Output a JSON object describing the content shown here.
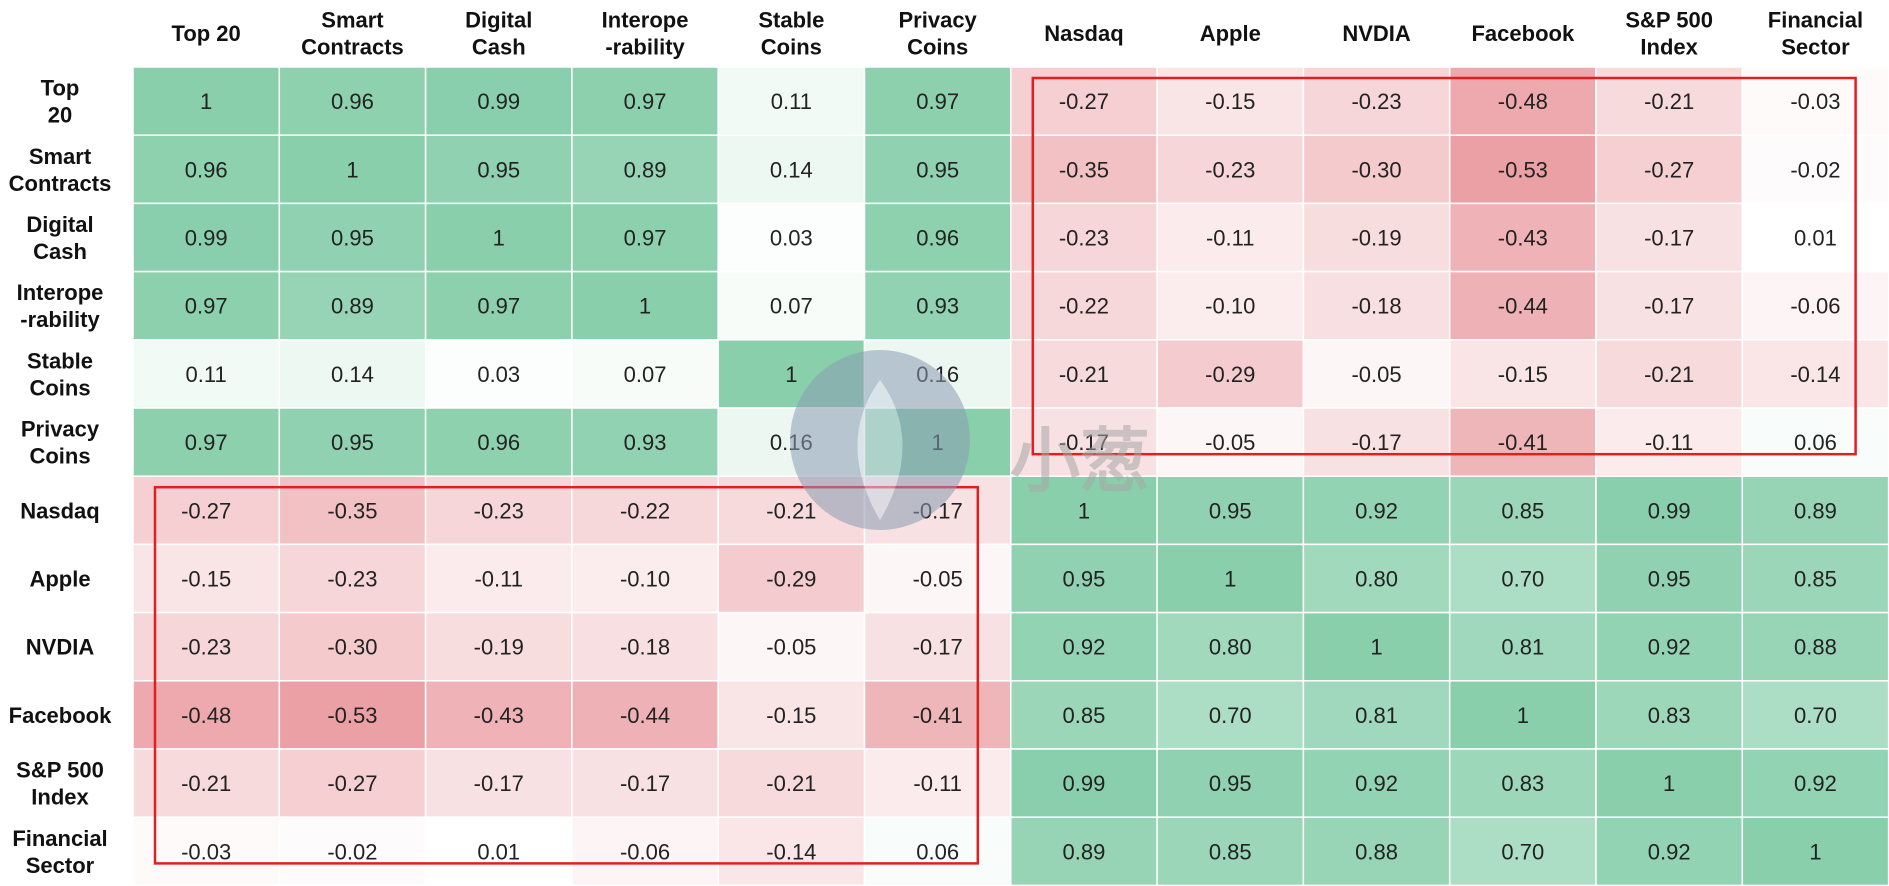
{
  "chart_data": {
    "type": "heatmap",
    "title": "",
    "columns": [
      [
        "Top 20"
      ],
      [
        "Smart",
        "Contracts"
      ],
      [
        "Digital",
        "Cash"
      ],
      [
        "Interope",
        "-rability"
      ],
      [
        "Stable",
        "Coins"
      ],
      [
        "Privacy",
        "Coins"
      ],
      [
        "Nasdaq"
      ],
      [
        "Apple"
      ],
      [
        "NVDIA"
      ],
      [
        "Facebook"
      ],
      [
        "S&P 500",
        "Index"
      ],
      [
        "Financial",
        "Sector"
      ]
    ],
    "rows": [
      [
        "Top",
        "20"
      ],
      [
        "Smart",
        "Contracts"
      ],
      [
        "Digital",
        "Cash"
      ],
      [
        "Interope",
        "-rability"
      ],
      [
        "Stable",
        "Coins"
      ],
      [
        "Privacy",
        "Coins"
      ],
      [
        "Nasdaq"
      ],
      [
        "Apple"
      ],
      [
        "NVDIA"
      ],
      [
        "Facebook"
      ],
      [
        "S&P 500",
        "Index"
      ],
      [
        "Financial",
        "Sector"
      ]
    ],
    "values": [
      [
        "1",
        "0.96",
        "0.99",
        "0.97",
        "0.11",
        "0.97",
        "-0.27",
        "-0.15",
        "-0.23",
        "-0.48",
        "-0.21",
        "-0.03"
      ],
      [
        "0.96",
        "1",
        "0.95",
        "0.89",
        "0.14",
        "0.95",
        "-0.35",
        "-0.23",
        "-0.30",
        "-0.53",
        "-0.27",
        "-0.02"
      ],
      [
        "0.99",
        "0.95",
        "1",
        "0.97",
        "0.03",
        "0.96",
        "-0.23",
        "-0.11",
        "-0.19",
        "-0.43",
        "-0.17",
        "0.01"
      ],
      [
        "0.97",
        "0.89",
        "0.97",
        "1",
        "0.07",
        "0.93",
        "-0.22",
        "-0.10",
        "-0.18",
        "-0.44",
        "-0.17",
        "-0.06"
      ],
      [
        "0.11",
        "0.14",
        "0.03",
        "0.07",
        "1",
        "0.16",
        "-0.21",
        "-0.29",
        "-0.05",
        "-0.15",
        "-0.21",
        "-0.14"
      ],
      [
        "0.97",
        "0.95",
        "0.96",
        "0.93",
        "0.16",
        "1",
        "-0.17",
        "-0.05",
        "-0.17",
        "-0.41",
        "-0.11",
        "0.06"
      ],
      [
        "-0.27",
        "-0.35",
        "-0.23",
        "-0.22",
        "-0.21",
        "-0.17",
        "1",
        "0.95",
        "0.92",
        "0.85",
        "0.99",
        "0.89"
      ],
      [
        "-0.15",
        "-0.23",
        "-0.11",
        "-0.10",
        "-0.29",
        "-0.05",
        "0.95",
        "1",
        "0.80",
        "0.70",
        "0.95",
        "0.85"
      ],
      [
        "-0.23",
        "-0.30",
        "-0.19",
        "-0.18",
        "-0.05",
        "-0.17",
        "0.92",
        "0.80",
        "1",
        "0.81",
        "0.92",
        "0.88"
      ],
      [
        "-0.48",
        "-0.53",
        "-0.43",
        "-0.44",
        "-0.15",
        "-0.41",
        "0.85",
        "0.70",
        "0.81",
        "1",
        "0.83",
        "0.70"
      ],
      [
        "-0.21",
        "-0.27",
        "-0.17",
        "-0.17",
        "-0.21",
        "-0.11",
        "0.99",
        "0.95",
        "0.92",
        "0.83",
        "1",
        "0.92"
      ],
      [
        "-0.03",
        "-0.02",
        "0.01",
        "-0.06",
        "-0.14",
        "0.06",
        "0.89",
        "0.85",
        "0.88",
        "0.70",
        "0.92",
        "1"
      ]
    ],
    "color_scale": {
      "positive_max": "#89cfac",
      "neutral": "#ffffff",
      "negative_max": "#e8949a",
      "range": [
        -0.6,
        1.0
      ]
    },
    "highlight_color": "#e02020",
    "highlights": [
      {
        "rows": [
          0,
          5
        ],
        "cols": [
          6,
          11
        ]
      },
      {
        "rows": [
          6,
          11
        ],
        "cols": [
          0,
          5
        ]
      }
    ],
    "watermark": "小葱"
  }
}
